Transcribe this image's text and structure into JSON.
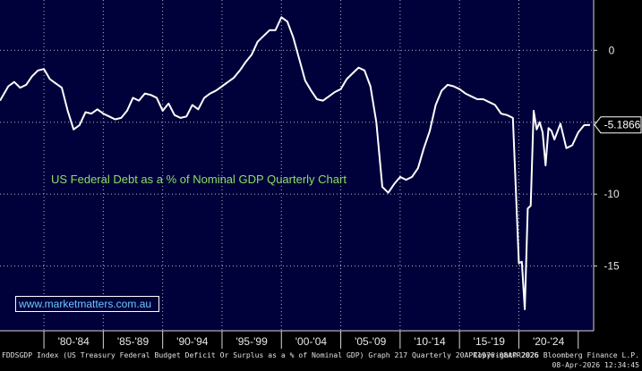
{
  "chart_data": {
    "type": "line",
    "title": "US Federal Debt as a % of Nominal GDP Quarterly Chart",
    "watermark": "www.marketmatters.com.au",
    "y_ticks": [
      "0",
      "-5",
      "-10",
      "-15"
    ],
    "ylim": [
      -19.5,
      3.5
    ],
    "xlim": [
      1976.3,
      2026.3
    ],
    "x_period_labels": [
      "'80-'84",
      "'85-'89",
      "'90-'94",
      "'95-'99",
      "'00-'04",
      "'05-'09",
      "'10-'14",
      "'15-'19",
      "'20-'24"
    ],
    "last_value_label": "-5.1866",
    "last_value": -5.1866,
    "grid": true,
    "series": [
      {
        "line_color": "#ffffff",
        "x": [
          1976.3,
          1977.0,
          1977.5,
          1978.0,
          1978.5,
          1979.0,
          1979.5,
          1980.0,
          1980.5,
          1981.0,
          1981.5,
          1982.0,
          1982.5,
          1983.0,
          1983.5,
          1984.0,
          1984.5,
          1985.0,
          1985.5,
          1986.0,
          1986.5,
          1987.0,
          1987.5,
          1988.0,
          1988.5,
          1989.0,
          1989.5,
          1990.0,
          1990.5,
          1991.0,
          1991.5,
          1992.0,
          1992.5,
          1993.0,
          1993.5,
          1994.0,
          1994.5,
          1995.0,
          1995.5,
          1996.0,
          1996.5,
          1997.0,
          1997.5,
          1998.0,
          1998.5,
          1999.0,
          1999.5,
          2000.0,
          2000.5,
          2001.0,
          2001.5,
          2002.0,
          2002.5,
          2003.0,
          2003.5,
          2004.0,
          2004.5,
          2005.0,
          2005.5,
          2006.0,
          2006.5,
          2007.0,
          2007.5,
          2008.0,
          2008.5,
          2009.0,
          2009.5,
          2010.0,
          2010.5,
          2011.0,
          2011.5,
          2012.0,
          2012.5,
          2013.0,
          2013.5,
          2014.0,
          2014.5,
          2015.0,
          2015.5,
          2016.0,
          2016.5,
          2017.0,
          2017.5,
          2018.0,
          2018.5,
          2019.0,
          2019.5,
          2020.0,
          2020.25,
          2020.5,
          2020.75,
          2021.0,
          2021.25,
          2021.5,
          2021.75,
          2022.0,
          2022.25,
          2022.5,
          2022.75,
          2023.0,
          2023.5,
          2024.0,
          2024.5,
          2025.0,
          2025.5,
          2026.0
        ],
        "values": [
          -3.5,
          -2.5,
          -2.2,
          -2.6,
          -2.4,
          -1.8,
          -1.4,
          -1.3,
          -2.0,
          -2.3,
          -2.6,
          -4.2,
          -5.5,
          -5.2,
          -4.3,
          -4.4,
          -4.1,
          -4.4,
          -4.6,
          -4.8,
          -4.7,
          -4.2,
          -3.3,
          -3.5,
          -3.0,
          -3.1,
          -3.3,
          -4.2,
          -3.7,
          -4.5,
          -4.7,
          -4.6,
          -3.8,
          -4.1,
          -3.3,
          -3.0,
          -2.8,
          -2.5,
          -2.2,
          -1.9,
          -1.4,
          -0.8,
          -0.3,
          0.6,
          1.0,
          1.4,
          1.4,
          2.3,
          2.0,
          0.9,
          -0.6,
          -2.1,
          -2.8,
          -3.4,
          -3.5,
          -3.2,
          -2.9,
          -2.7,
          -2.0,
          -1.6,
          -1.2,
          -1.4,
          -2.5,
          -5.0,
          -9.5,
          -9.9,
          -9.3,
          -8.8,
          -9.0,
          -8.8,
          -8.2,
          -6.8,
          -5.6,
          -3.8,
          -2.8,
          -2.4,
          -2.5,
          -2.7,
          -3.0,
          -3.2,
          -3.4,
          -3.4,
          -3.6,
          -3.8,
          -4.4,
          -4.5,
          -4.7,
          -14.8,
          -14.7,
          -18.0,
          -11.0,
          -10.8,
          -4.2,
          -5.5,
          -5.0,
          -5.7,
          -8.0,
          -5.4,
          -5.6,
          -6.2,
          -5.1,
          -6.8,
          -6.6,
          -5.7,
          -5.2,
          -5.1866
        ]
      }
    ]
  },
  "footer": {
    "source": "FDDSGDP Index (US Treasury Federal Budget Deficit Or Surplus as a % of Nominal GDP) Graph 217 Quarterly 20APR1976-08APR2026",
    "copyright": "Copyright© 2026 Bloomberg Finance L.P.",
    "datetime": "08-Apr-2026 12:34:45"
  }
}
